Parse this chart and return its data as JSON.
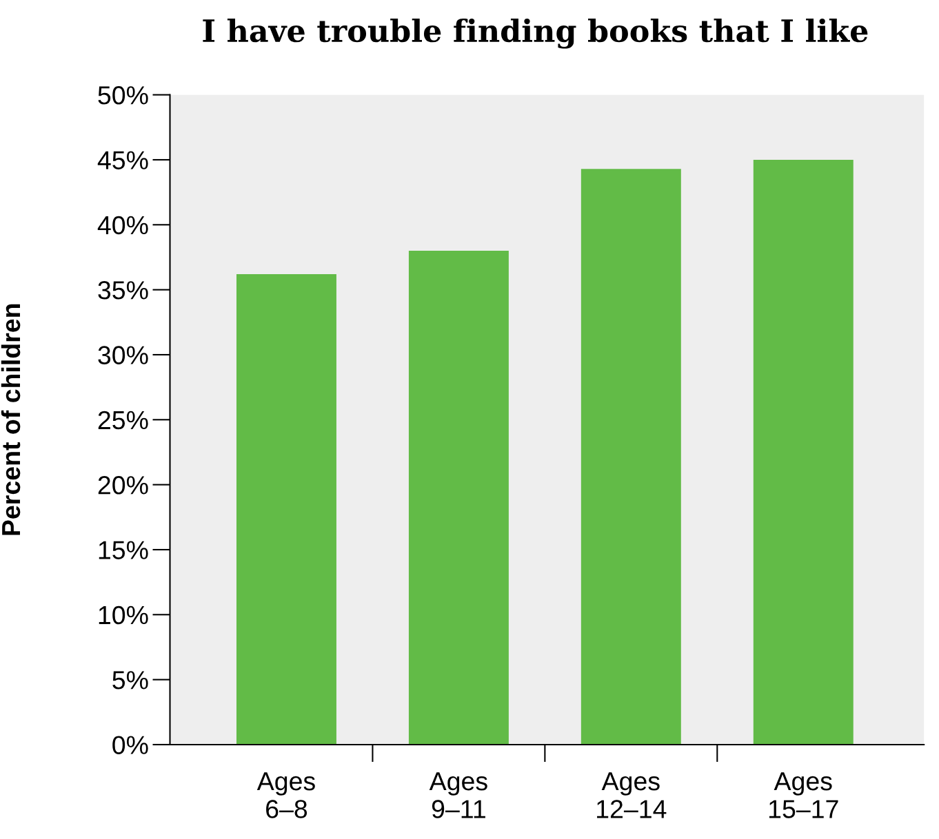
{
  "chart_data": {
    "type": "bar",
    "title": "I have trouble finding books that I like",
    "ylabel": "Percent of children",
    "categories": [
      "Ages\n6–8",
      "Ages\n9–11",
      "Ages\n12–14",
      "Ages\n15–17"
    ],
    "values": [
      36.2,
      38.0,
      44.3,
      45.0
    ],
    "color": "#62bb47",
    "ylim": [
      0,
      50
    ],
    "yticks": [
      {
        "value": 0,
        "label": "0%"
      },
      {
        "value": 5,
        "label": "5%"
      },
      {
        "value": 10,
        "label": "10%"
      },
      {
        "value": 15,
        "label": "15%"
      },
      {
        "value": 20,
        "label": "20%"
      },
      {
        "value": 25,
        "label": "25%"
      },
      {
        "value": 30,
        "label": "30%"
      },
      {
        "value": 35,
        "label": "35%"
      },
      {
        "value": 40,
        "label": "40%"
      },
      {
        "value": 45,
        "label": "45%"
      },
      {
        "value": 50,
        "label": "50%"
      }
    ],
    "grid": false,
    "legend": false
  }
}
